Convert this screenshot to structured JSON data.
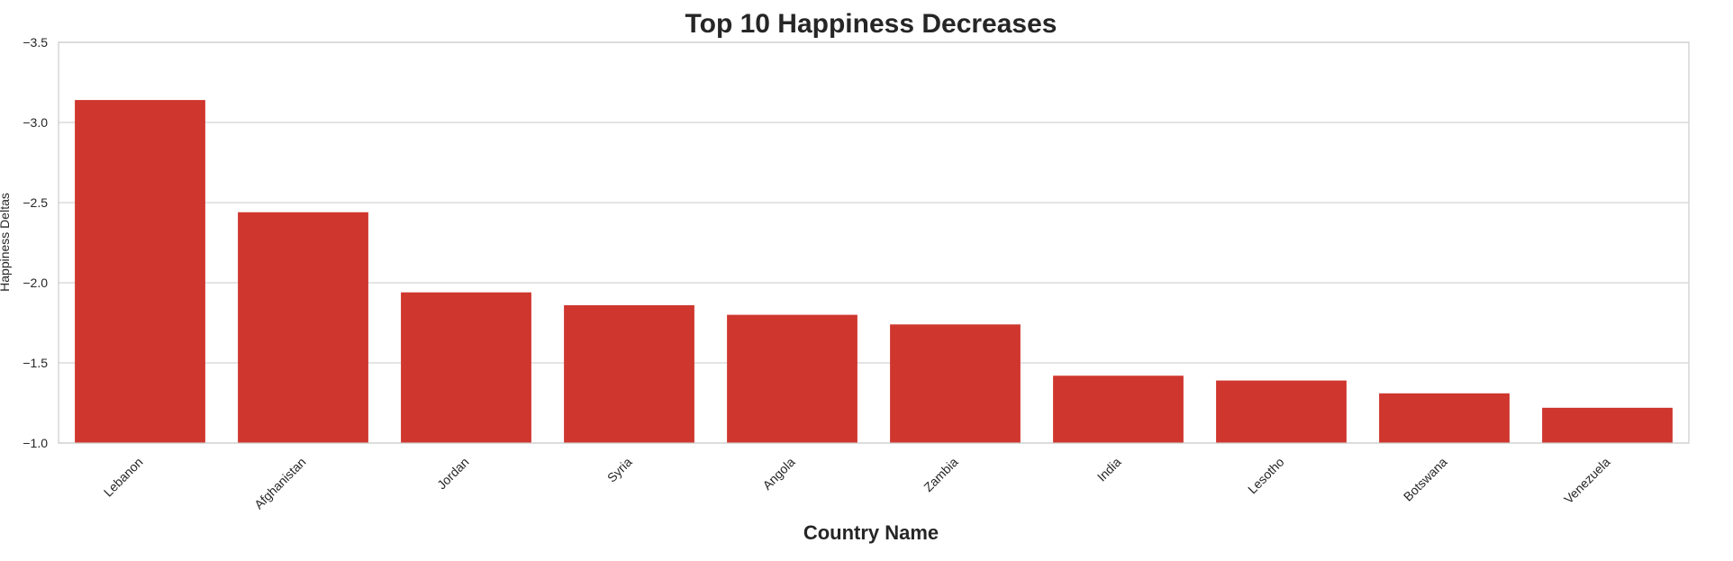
{
  "chart_data": {
    "type": "bar",
    "title": "Top 10 Happiness Decreases",
    "xlabel": "Country Name",
    "ylabel": "Happiness Deltas",
    "categories": [
      "Lebanon",
      "Afghanistan",
      "Jordan",
      "Syria",
      "Angola",
      "Zambia",
      "India",
      "Lesotho",
      "Botswana",
      "Venezuela"
    ],
    "values": [
      -3.14,
      -2.44,
      -1.94,
      -1.86,
      -1.8,
      -1.74,
      -1.42,
      -1.39,
      -1.31,
      -1.22
    ],
    "ylim": [
      -1.0,
      -3.5
    ],
    "yticks": [
      -1.0,
      -1.5,
      -2.0,
      -2.5,
      -3.0,
      -3.5
    ],
    "ytick_labels": [
      "−1.0",
      "−1.5",
      "−2.0",
      "−2.5",
      "−3.0",
      "−3.5"
    ],
    "y_inverted": true,
    "grid": true,
    "bar_color": "#cf362e",
    "grid_color": "#d3d3d3",
    "spine_color": "#cccccc"
  }
}
